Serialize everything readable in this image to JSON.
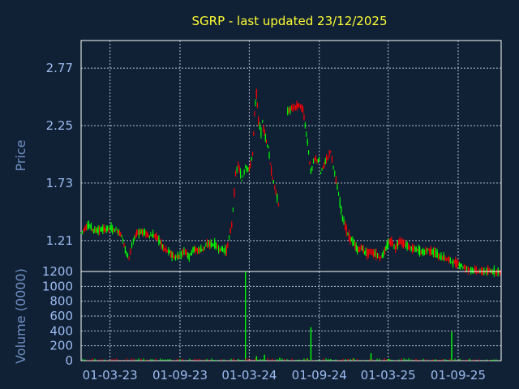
{
  "chart_data": [
    {
      "type": "candlestick",
      "title": "SGRP - last updated 23/12/2025",
      "ylabel": "Price",
      "yticks": [
        "2.77",
        "2.25",
        "1.73",
        "1.21"
      ],
      "ylim": [
        0.93,
        3.02
      ],
      "xticks": [
        "01-03-23",
        "01-09-23",
        "01-03-24",
        "01-09-24",
        "01-03-25",
        "01-09-25"
      ],
      "xlim": [
        "2022-12-15",
        "2025-12-23"
      ],
      "grid": true,
      "up_color": "#00ff00",
      "down_color": "#ff0000",
      "series": [
        {
          "x": [
            "2022-12-15",
            "2023-01-01",
            "2023-01-20",
            "2023-02-10",
            "2023-03-01",
            "2023-03-20",
            "2023-04-01",
            "2023-04-10",
            "2023-04-20",
            "2023-05-01",
            "2023-05-10",
            "2023-05-25",
            "2023-06-10",
            "2023-07-01",
            "2023-07-20",
            "2023-08-05",
            "2023-08-20",
            "2023-09-01",
            "2023-09-15",
            "2023-09-25",
            "2023-10-05",
            "2023-10-20",
            "2023-11-01",
            "2023-11-15",
            "2023-12-01",
            "2023-12-15",
            "2024-01-01",
            "2024-01-15",
            "2024-01-25",
            "2024-02-01",
            "2024-02-10",
            "2024-02-20",
            "2024-03-01",
            "2024-03-10",
            "2024-03-15",
            "2024-03-20",
            "2024-03-25",
            "2024-04-01",
            "2024-04-05",
            "2024-04-10",
            "2024-04-15",
            "2024-04-20",
            "2024-04-25",
            "2024-05-01",
            "2024-05-10",
            "2024-05-20",
            "2024-06-01",
            "2024-06-10",
            "2024-06-20",
            "2024-07-01",
            "2024-07-10",
            "2024-07-20",
            "2024-08-01",
            "2024-08-10",
            "2024-08-20",
            "2024-09-01",
            "2024-09-05",
            "2024-09-20",
            "2024-10-01",
            "2024-10-15",
            "2024-11-01",
            "2024-11-15",
            "2024-12-01",
            "2024-12-10",
            "2024-12-20",
            "2025-01-01",
            "2025-01-15",
            "2025-02-01",
            "2025-02-10",
            "2025-02-20",
            "2025-03-01",
            "2025-03-10",
            "2025-03-20",
            "2025-04-01",
            "2025-04-10",
            "2025-04-20",
            "2025-05-01",
            "2025-05-20",
            "2025-06-01",
            "2025-06-15",
            "2025-07-01",
            "2025-07-15",
            "2025-08-01",
            "2025-08-15",
            "2025-09-01",
            "2025-09-10",
            "2025-09-20",
            "2025-10-01",
            "2025-10-15",
            "2025-11-01",
            "2025-11-15",
            "2025-12-01",
            "2025-12-15",
            "2025-12-23"
          ],
          "close": [
            1.28,
            1.35,
            1.3,
            1.31,
            1.32,
            1.3,
            1.26,
            1.12,
            1.06,
            1.2,
            1.28,
            1.29,
            1.26,
            1.25,
            1.14,
            1.1,
            1.05,
            1.08,
            1.12,
            1.06,
            1.13,
            1.12,
            1.14,
            1.18,
            1.17,
            1.13,
            1.12,
            1.35,
            1.8,
            1.9,
            1.75,
            1.88,
            1.85,
            2.0,
            2.35,
            2.55,
            2.3,
            2.18,
            2.28,
            2.2,
            2.1,
            2.05,
            1.9,
            1.78,
            1.65,
            1.48,
            null,
            2.38,
            2.4,
            2.42,
            2.44,
            2.4,
            2.1,
            1.83,
            1.95,
            1.93,
            1.82,
            1.95,
            2.02,
            1.75,
            1.42,
            1.27,
            1.18,
            1.12,
            1.15,
            1.1,
            1.11,
            1.08,
            1.05,
            1.12,
            1.18,
            1.2,
            1.14,
            1.22,
            1.18,
            1.16,
            1.14,
            1.12,
            1.1,
            1.13,
            1.1,
            1.06,
            1.05,
            1.02,
            1.0,
            0.98,
            0.96,
            0.95,
            0.94,
            0.93,
            0.93,
            0.93,
            0.93,
            0.93
          ]
        }
      ]
    },
    {
      "type": "bar",
      "ylabel": "Volume (0000)",
      "yticks": [
        "1200",
        "1000",
        "800",
        "600",
        "400",
        "200",
        "0"
      ],
      "ylim": [
        0,
        1200
      ],
      "xticks": [
        "01-03-23",
        "01-09-23",
        "01-03-24",
        "01-09-24",
        "01-03-25",
        "01-09-25"
      ],
      "grid": true,
      "color": "#00ff00",
      "series": [
        {
          "x": [
            "2023-03-01",
            "2023-06-01",
            "2023-09-01",
            "2023-12-01",
            "2024-02-01",
            "2024-02-20",
            "2024-03-20",
            "2024-04-10",
            "2024-05-20",
            "2024-08-01",
            "2024-08-10",
            "2024-10-01",
            "2024-12-01",
            "2025-01-15",
            "2025-03-01",
            "2025-05-01",
            "2025-07-01",
            "2025-08-10",
            "2025-08-15",
            "2025-10-01",
            "2025-12-01"
          ],
          "values": [
            5,
            8,
            10,
            10,
            20,
            1200,
            60,
            80,
            40,
            30,
            450,
            20,
            30,
            100,
            20,
            15,
            10,
            10,
            390,
            15,
            10
          ]
        }
      ]
    }
  ]
}
